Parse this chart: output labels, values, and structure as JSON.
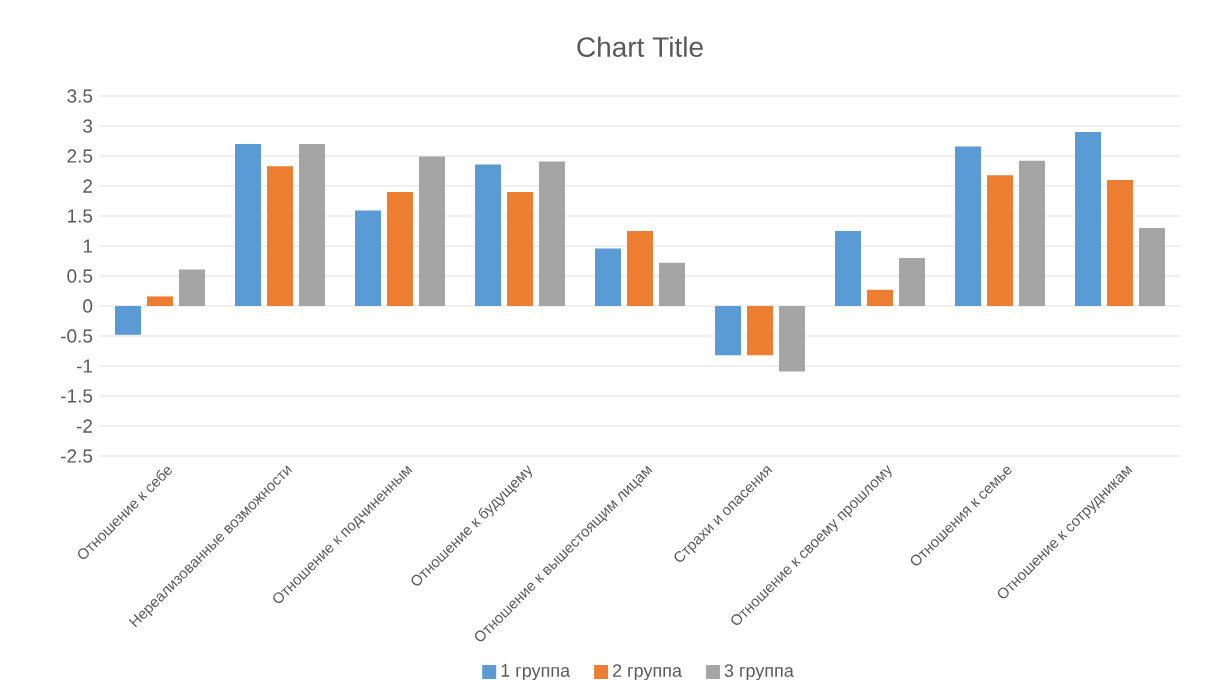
{
  "chart_data": {
    "type": "bar",
    "title": "Chart Title",
    "categories": [
      "Отношение к себе",
      "Нереализованные возможности",
      "Отношение к подчиненным",
      "Отношение к будущему",
      "Отношение к вышестоящим лицам",
      "Страхи и опасения",
      "Отношение к своему прошлому",
      "Отношения к семье",
      "Отношение к сотрудникам"
    ],
    "series": [
      {
        "name": "1 группа",
        "color": "#5b9bd5",
        "values": [
          -0.48,
          2.7,
          1.59,
          2.36,
          0.96,
          -0.82,
          1.25,
          2.66,
          2.9
        ]
      },
      {
        "name": "2 группа",
        "color": "#ed7d31",
        "values": [
          0.16,
          2.33,
          1.9,
          1.9,
          1.25,
          -0.82,
          0.27,
          2.18,
          2.1
        ]
      },
      {
        "name": "3 группа",
        "color": "#a5a5a5",
        "values": [
          0.61,
          2.7,
          2.49,
          2.41,
          0.72,
          -1.09,
          0.8,
          2.42,
          1.3
        ]
      }
    ],
    "ylim": [
      -2.5,
      3.5
    ],
    "yticks": [
      -2.5,
      -2,
      -1.5,
      -1,
      -0.5,
      0,
      0.5,
      1,
      1.5,
      2,
      2.5,
      3,
      3.5
    ],
    "grid": "y",
    "legend": "bottom"
  }
}
